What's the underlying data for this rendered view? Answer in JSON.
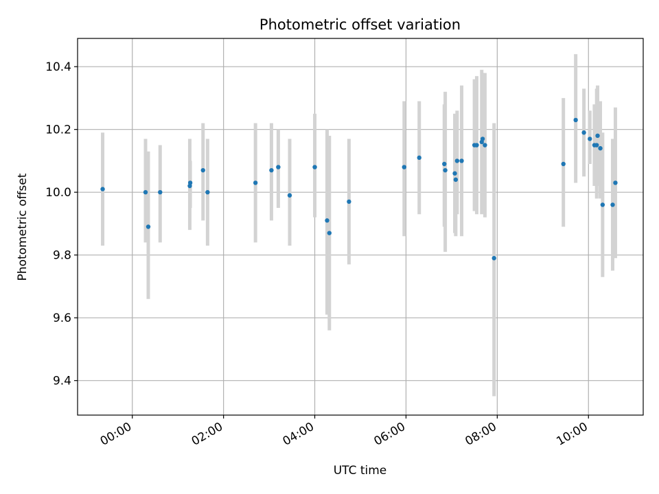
{
  "chart_data": {
    "type": "scatter",
    "title": "Photometric offset variation",
    "xlabel": "UTC time",
    "ylabel": "Photometric offset",
    "x_unit": "hours (UTC)",
    "xlim": [
      -1.2,
      11.2
    ],
    "ylim": [
      9.29,
      10.49
    ],
    "x_ticks": [
      {
        "value": 0,
        "label": "00:00"
      },
      {
        "value": 2,
        "label": "02:00"
      },
      {
        "value": 4,
        "label": "04:00"
      },
      {
        "value": 6,
        "label": "06:00"
      },
      {
        "value": 8,
        "label": "08:00"
      },
      {
        "value": 10,
        "label": "10:00"
      }
    ],
    "y_ticks": [
      {
        "value": 9.4,
        "label": "9.4"
      },
      {
        "value": 9.6,
        "label": "9.6"
      },
      {
        "value": 9.8,
        "label": "9.8"
      },
      {
        "value": 10.0,
        "label": "10.0"
      },
      {
        "value": 10.2,
        "label": "10.2"
      },
      {
        "value": 10.4,
        "label": "10.4"
      }
    ],
    "grid": true,
    "colors": {
      "point": "#1f77b4",
      "errorbar": "#d3d3d3",
      "grid": "#b0b0b0"
    },
    "series": [
      {
        "points": [
          {
            "x": -0.65,
            "y": 10.01,
            "ylo": 9.83,
            "yhi": 10.19
          },
          {
            "x": 0.29,
            "y": 10.0,
            "ylo": 9.84,
            "yhi": 10.17
          },
          {
            "x": 0.35,
            "y": 9.89,
            "ylo": 9.66,
            "yhi": 10.13
          },
          {
            "x": 0.61,
            "y": 10.0,
            "ylo": 9.84,
            "yhi": 10.15
          },
          {
            "x": 1.26,
            "y": 10.02,
            "ylo": 9.88,
            "yhi": 10.17
          },
          {
            "x": 1.27,
            "y": 10.03,
            "ylo": 9.95,
            "yhi": 10.1
          },
          {
            "x": 1.55,
            "y": 10.07,
            "ylo": 9.91,
            "yhi": 10.22
          },
          {
            "x": 1.65,
            "y": 10.0,
            "ylo": 9.83,
            "yhi": 10.17
          },
          {
            "x": 2.7,
            "y": 10.03,
            "ylo": 9.84,
            "yhi": 10.22
          },
          {
            "x": 3.05,
            "y": 10.07,
            "ylo": 9.91,
            "yhi": 10.22
          },
          {
            "x": 3.2,
            "y": 10.08,
            "ylo": 9.95,
            "yhi": 10.2
          },
          {
            "x": 3.45,
            "y": 9.99,
            "ylo": 9.83,
            "yhi": 10.17
          },
          {
            "x": 4.0,
            "y": 10.08,
            "ylo": 9.92,
            "yhi": 10.25
          },
          {
            "x": 4.27,
            "y": 9.91,
            "ylo": 9.61,
            "yhi": 10.2
          },
          {
            "x": 4.32,
            "y": 9.87,
            "ylo": 9.56,
            "yhi": 10.18
          },
          {
            "x": 4.75,
            "y": 9.97,
            "ylo": 9.77,
            "yhi": 10.17
          },
          {
            "x": 5.96,
            "y": 10.08,
            "ylo": 9.86,
            "yhi": 10.29
          },
          {
            "x": 6.29,
            "y": 10.11,
            "ylo": 9.93,
            "yhi": 10.29
          },
          {
            "x": 6.84,
            "y": 10.09,
            "ylo": 9.89,
            "yhi": 10.28
          },
          {
            "x": 6.86,
            "y": 10.07,
            "ylo": 9.81,
            "yhi": 10.32
          },
          {
            "x": 7.07,
            "y": 10.06,
            "ylo": 9.87,
            "yhi": 10.25
          },
          {
            "x": 7.09,
            "y": 10.04,
            "ylo": 9.86,
            "yhi": 10.22
          },
          {
            "x": 7.12,
            "y": 10.1,
            "ylo": 9.93,
            "yhi": 10.26
          },
          {
            "x": 7.22,
            "y": 10.1,
            "ylo": 9.86,
            "yhi": 10.34
          },
          {
            "x": 7.5,
            "y": 10.15,
            "ylo": 9.94,
            "yhi": 10.36
          },
          {
            "x": 7.55,
            "y": 10.15,
            "ylo": 9.93,
            "yhi": 10.37
          },
          {
            "x": 7.66,
            "y": 10.16,
            "ylo": 9.93,
            "yhi": 10.39
          },
          {
            "x": 7.68,
            "y": 10.17,
            "ylo": 9.96,
            "yhi": 10.38
          },
          {
            "x": 7.73,
            "y": 10.15,
            "ylo": 9.92,
            "yhi": 10.38
          },
          {
            "x": 7.93,
            "y": 9.79,
            "ylo": 9.35,
            "yhi": 10.22
          },
          {
            "x": 9.45,
            "y": 10.09,
            "ylo": 9.89,
            "yhi": 10.3
          },
          {
            "x": 9.72,
            "y": 10.23,
            "ylo": 10.03,
            "yhi": 10.44
          },
          {
            "x": 9.9,
            "y": 10.19,
            "ylo": 10.05,
            "yhi": 10.33
          },
          {
            "x": 10.03,
            "y": 10.17,
            "ylo": 10.09,
            "yhi": 10.26
          },
          {
            "x": 10.13,
            "y": 10.15,
            "ylo": 10.02,
            "yhi": 10.28
          },
          {
            "x": 10.18,
            "y": 10.15,
            "ylo": 9.98,
            "yhi": 10.33
          },
          {
            "x": 10.2,
            "y": 10.18,
            "ylo": 10.02,
            "yhi": 10.34
          },
          {
            "x": 10.26,
            "y": 10.14,
            "ylo": 9.98,
            "yhi": 10.29
          },
          {
            "x": 10.31,
            "y": 9.96,
            "ylo": 9.73,
            "yhi": 10.19
          },
          {
            "x": 10.53,
            "y": 9.96,
            "ylo": 9.75,
            "yhi": 10.17
          },
          {
            "x": 10.59,
            "y": 10.03,
            "ylo": 9.79,
            "yhi": 10.27
          }
        ]
      }
    ]
  }
}
